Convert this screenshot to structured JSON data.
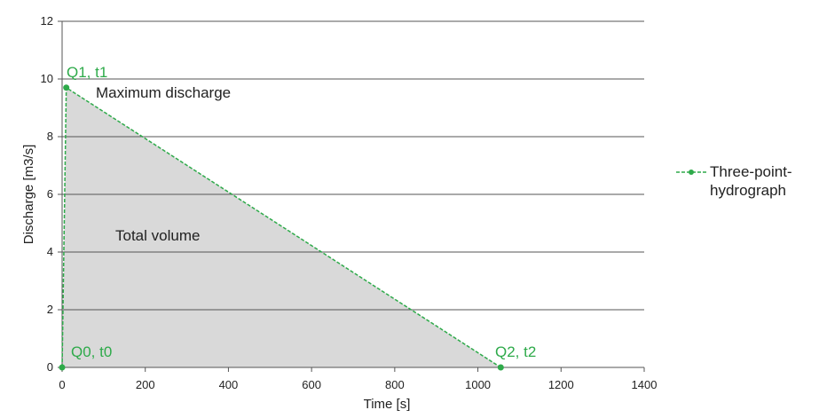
{
  "chart_data": {
    "type": "line",
    "x": [
      0,
      10,
      1055
    ],
    "series": [
      {
        "name": "Three-point-hydrograph",
        "color": "#2eaa4a",
        "values": [
          0,
          9.7,
          0
        ]
      }
    ],
    "xlabel": "Time [s]",
    "ylabel": "Discharge [m3/s]",
    "xlim": [
      0,
      1400
    ],
    "xticks": [
      0,
      200,
      400,
      600,
      800,
      1000,
      1200,
      1400
    ],
    "ylim": [
      0,
      12
    ],
    "yticks": [
      0,
      2,
      4,
      6,
      8,
      10,
      12
    ],
    "grid": true,
    "fill": "#d9d9d9",
    "legend": "right",
    "annotations": [
      {
        "text": "Q1, t1"
      },
      {
        "text": "Maximum discharge"
      },
      {
        "text": "Total volume"
      },
      {
        "text": "Q0, t0"
      },
      {
        "text": "Q2, t2"
      }
    ]
  }
}
